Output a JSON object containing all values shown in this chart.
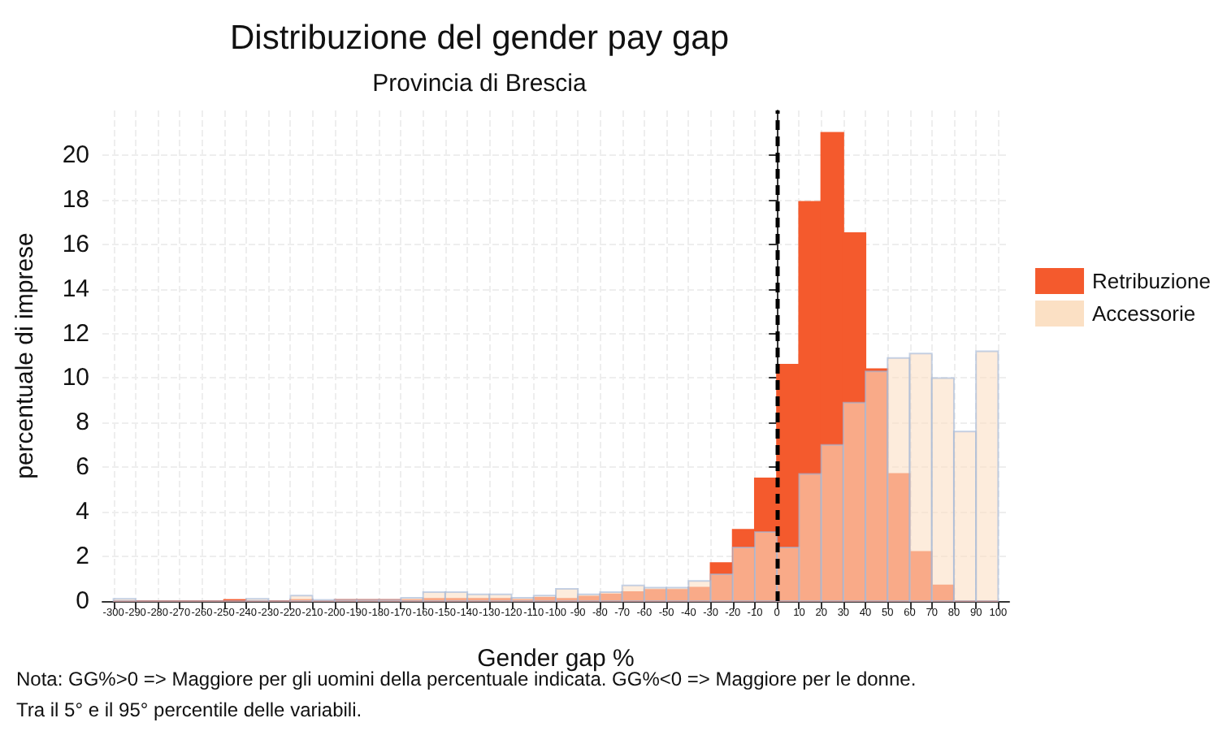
{
  "chart_data": {
    "type": "histogram",
    "title": "Distribuzione del gender pay gap",
    "subtitle": "Provincia di Brescia",
    "xlabel": "Gender gap %",
    "ylabel": "percentuale di imprese",
    "bins": [
      -300,
      -290,
      -280,
      -270,
      -260,
      -250,
      -240,
      -230,
      -220,
      -210,
      -200,
      -190,
      -180,
      -170,
      -160,
      -150,
      -140,
      -130,
      -120,
      -110,
      -100,
      -90,
      -80,
      -70,
      -60,
      -50,
      -40,
      -30,
      -20,
      -10,
      0,
      10,
      20,
      30,
      40,
      50,
      60,
      70,
      80,
      90,
      100
    ],
    "series": [
      {
        "name": "Retribuzione",
        "color": "#f45a2d",
        "values": [
          0,
          0,
          0,
          0,
          0,
          0.05,
          0,
          0,
          0.05,
          0,
          0.05,
          0.05,
          0.05,
          0.05,
          0.1,
          0.1,
          0.1,
          0.1,
          0.05,
          0.15,
          0.1,
          0.2,
          0.3,
          0.4,
          0.5,
          0.5,
          0.6,
          1.7,
          3.2,
          5.5,
          10.6,
          17.9,
          21.0,
          16.5,
          10.4,
          5.7,
          2.2,
          0.7,
          0,
          0
        ]
      },
      {
        "name": "Accessorie",
        "color": "#fbe0c4",
        "values": [
          0.1,
          0,
          0,
          0,
          0,
          0,
          0.1,
          0,
          0.25,
          0.05,
          0.05,
          0.05,
          0.05,
          0.15,
          0.4,
          0.4,
          0.3,
          0.3,
          0.15,
          0.25,
          0.55,
          0.3,
          0.4,
          0.7,
          0.6,
          0.6,
          0.9,
          1.2,
          2.4,
          3.1,
          2.4,
          5.7,
          7.0,
          8.9,
          10.3,
          10.9,
          11.1,
          10.0,
          7.6,
          11.2
        ]
      }
    ],
    "xlim": [
      -305,
      105
    ],
    "xticks": [
      -300,
      -290,
      -280,
      -270,
      -260,
      -250,
      -240,
      -230,
      -220,
      -210,
      -200,
      -190,
      -180,
      -170,
      -160,
      -150,
      -140,
      -130,
      -120,
      -110,
      -100,
      -90,
      -80,
      -70,
      -60,
      -50,
      -40,
      -30,
      -20,
      -10,
      0,
      10,
      20,
      30,
      40,
      50,
      60,
      70,
      80,
      90,
      100
    ],
    "ylim": [
      0,
      22
    ],
    "yticks": [
      0,
      2,
      4,
      6,
      8,
      10,
      12,
      14,
      16,
      18,
      20
    ],
    "grid": true,
    "legend": "right",
    "ref_lines": [
      {
        "axis": "x",
        "value": 0,
        "color": "#000000",
        "line_style": "dashed"
      }
    ],
    "annotations": [
      "Nota: GG%>0 => Maggiore per gli uomini della percentuale indicata. GG%<0 => Maggiore per le donne.",
      "Tra il 5° e il 95° percentile delle variabili."
    ]
  }
}
